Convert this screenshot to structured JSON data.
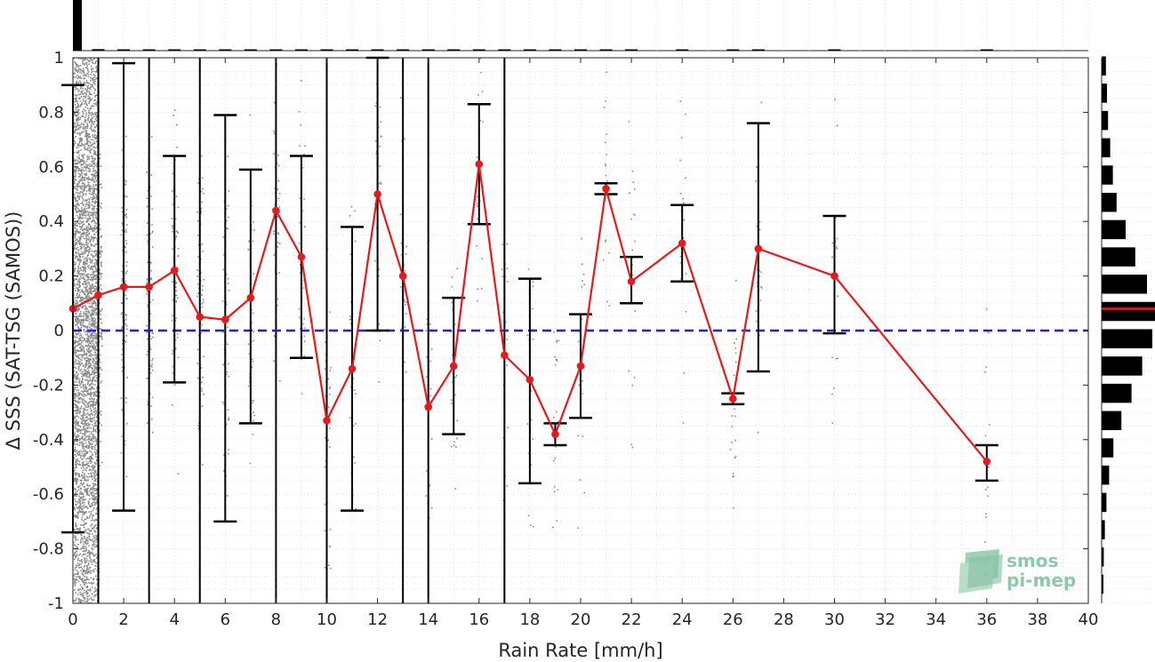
{
  "chart_data": {
    "type": "line",
    "xlabel": "Rain Rate [mm/h]",
    "ylabel": "Δ SSS (SAT-TSG (SAMOS))",
    "xlim": [
      0,
      40
    ],
    "ylim": [
      -1,
      1
    ],
    "x_ticks": [
      "0",
      "2",
      "4",
      "6",
      "8",
      "10",
      "12",
      "14",
      "16",
      "18",
      "20",
      "22",
      "24",
      "26",
      "28",
      "30",
      "32",
      "34",
      "36",
      "38",
      "40"
    ],
    "y_ticks": [
      "1",
      "0.8",
      "0.6",
      "0.4",
      "0.2",
      "0",
      "-0.2",
      "-0.4",
      "-0.6",
      "-0.8",
      "-1"
    ],
    "grid": true,
    "zero_line": {
      "y": 0,
      "color": "#1f1fe6",
      "style": "dashed"
    },
    "mean_color": "#e41a1c",
    "series": [
      {
        "x": [
          0,
          1,
          2,
          3,
          4,
          5,
          6,
          7,
          8,
          9,
          10,
          11,
          12,
          13,
          14,
          15,
          16,
          17,
          18,
          19,
          20,
          21,
          22,
          24,
          26,
          27,
          30,
          36
        ],
        "y": [
          0.08,
          0.13,
          0.16,
          0.16,
          0.22,
          0.05,
          0.04,
          0.12,
          0.44,
          0.27,
          -0.33,
          -0.14,
          0.5,
          0.2,
          -0.28,
          -0.13,
          0.61,
          -0.09,
          -0.18,
          -0.38,
          -0.13,
          0.52,
          0.18,
          0.32,
          -0.25,
          0.3,
          0.2,
          -0.48
        ],
        "err_low": [
          -0.74,
          null,
          -0.66,
          null,
          -0.19,
          null,
          -0.7,
          -0.34,
          null,
          -0.1,
          null,
          -0.66,
          0.0,
          null,
          null,
          -0.38,
          0.39,
          null,
          -0.56,
          -0.42,
          -0.32,
          0.5,
          0.1,
          0.18,
          -0.27,
          -0.15,
          -0.01,
          -0.55
        ],
        "err_high": [
          0.9,
          null,
          0.98,
          null,
          0.64,
          null,
          0.79,
          0.59,
          null,
          0.64,
          null,
          0.38,
          1.0,
          null,
          null,
          0.12,
          0.83,
          null,
          0.19,
          -0.34,
          0.06,
          0.54,
          0.27,
          0.46,
          -0.23,
          0.76,
          0.42,
          -0.42
        ]
      }
    ],
    "full_range_bars_x": [
      1,
      3,
      5,
      8,
      10,
      13,
      14,
      17
    ],
    "top_histogram": {
      "bin_width": 1,
      "x": [
        0,
        1,
        2,
        3,
        4,
        5,
        6,
        7,
        8,
        9,
        10,
        11,
        12,
        13,
        14,
        15,
        16,
        17,
        18,
        19,
        20,
        21,
        22,
        23,
        24,
        25,
        26,
        27,
        28,
        29,
        30,
        31,
        32,
        33,
        34,
        35,
        36
      ],
      "counts": [
        1.0,
        0.03,
        0.02,
        0.015,
        0.012,
        0.01,
        0.01,
        0.008,
        0.007,
        0.006,
        0.006,
        0.005,
        0.005,
        0.004,
        0.004,
        0.004,
        0.004,
        0.003,
        0.003,
        0.003,
        0.003,
        0.003,
        0.003,
        0,
        0.002,
        0,
        0.002,
        0.002,
        0,
        0,
        0.002,
        0,
        0,
        0,
        0,
        0,
        0.001
      ]
    },
    "right_histogram": {
      "bin_centers": [
        0.97,
        0.87,
        0.77,
        0.67,
        0.57,
        0.47,
        0.37,
        0.27,
        0.17,
        0.07,
        -0.03,
        -0.13,
        -0.23,
        -0.33,
        -0.43,
        -0.53,
        -0.63,
        -0.73,
        -0.83,
        -0.93
      ],
      "counts": [
        0.08,
        0.1,
        0.12,
        0.16,
        0.21,
        0.28,
        0.45,
        0.63,
        0.85,
        1.0,
        0.95,
        0.76,
        0.56,
        0.37,
        0.22,
        0.14,
        0.09,
        0.06,
        0.04,
        0.03
      ],
      "mean": 0.08
    }
  },
  "logo": {
    "line1": "smos",
    "line2": "pi-mep"
  }
}
